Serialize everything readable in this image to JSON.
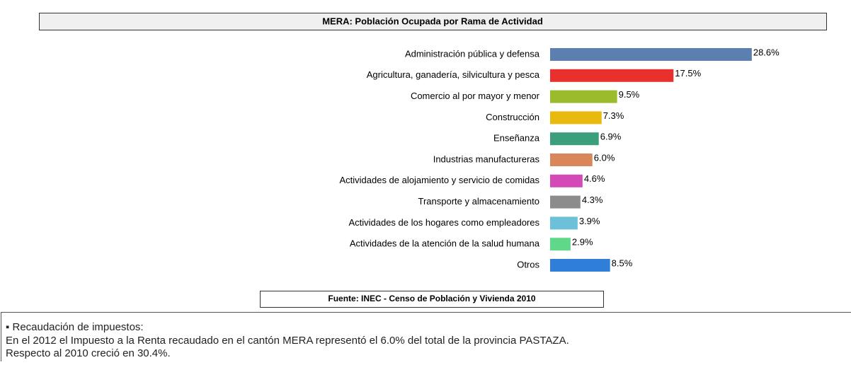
{
  "chart_data": {
    "type": "barh",
    "title": "MERA: Población Ocupada por Rama de Actividad",
    "categories": [
      "Administración pública y defensa",
      "Agricultura, ganadería, silvicultura y pesca",
      "Comercio al por mayor y menor",
      "Construcción",
      "Enseñanza",
      "Industrias manufactureras",
      "Actividades de alojamiento y servicio de comidas",
      "Transporte y almacenamiento",
      "Actividades de los hogares como empleadores",
      "Actividades de la atención de la salud humana",
      "Otros"
    ],
    "values": [
      28.6,
      17.5,
      9.5,
      7.3,
      6.9,
      6.0,
      4.6,
      4.3,
      3.9,
      2.9,
      8.5
    ],
    "value_labels": [
      "28.6%",
      "17.5%",
      "9.5%",
      "7.3%",
      "6.9%",
      "6.0%",
      "4.6%",
      "4.3%",
      "3.9%",
      "2.9%",
      "8.5%"
    ],
    "colors": [
      "#5b7fae",
      "#e8312d",
      "#9bbb2d",
      "#e8b90f",
      "#3a9f7a",
      "#d9875a",
      "#d448b8",
      "#8c8c8c",
      "#6cc0d8",
      "#5fd88a",
      "#2f7fd8"
    ],
    "source": "Fuente: INEC -  Censo de Población y Vivienda  2010"
  },
  "note": {
    "heading": "▪ Recaudación de impuestos:",
    "lines": [
      "En el 2012 el Impuesto a la Renta recaudado en el cantón MERA representó el 6.0% del total de la provincia PASTAZA.",
      "Respecto al 2010 creció en 30.4%."
    ]
  }
}
